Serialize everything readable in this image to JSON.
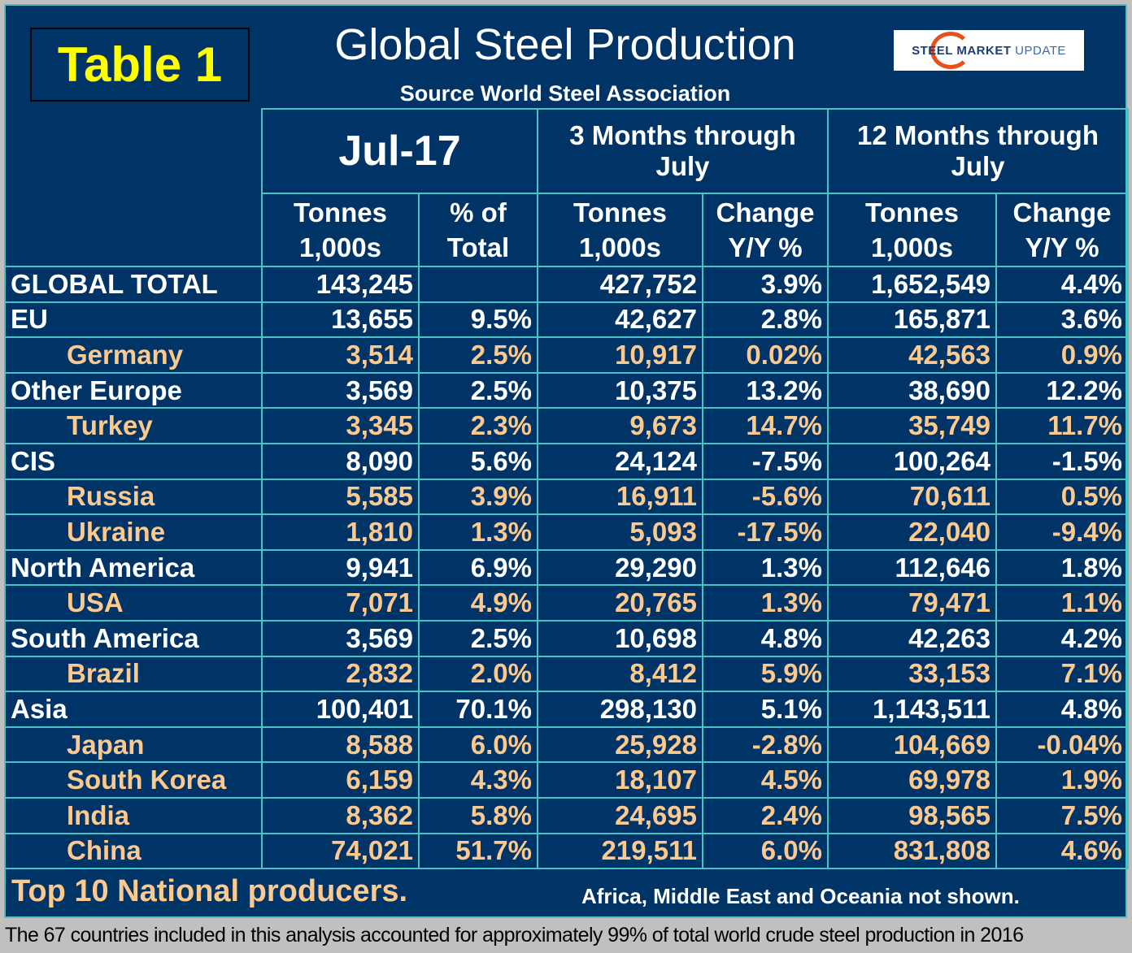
{
  "label": "Table 1",
  "title": "Global Steel Production",
  "subtitle": "Source World Steel Association",
  "logo": {
    "bold": "STEEL MARKET",
    "light": "UPDATE"
  },
  "headers": {
    "groups": [
      "Jul-17",
      "3 Months through July",
      "12 Months through July"
    ],
    "columns": [
      "Tonnes 1,000s",
      "% of Total",
      "Tonnes 1,000s",
      "Change Y/Y %",
      "Tonnes 1,000s",
      "Change Y/Y %"
    ]
  },
  "rows": [
    {
      "name": "GLOBAL TOTAL",
      "type": "region",
      "values": [
        "143,245",
        "",
        "427,752",
        "3.9%",
        "1,652,549",
        "4.4%"
      ]
    },
    {
      "name": "EU",
      "type": "region",
      "values": [
        "13,655",
        "9.5%",
        "42,627",
        "2.8%",
        "165,871",
        "3.6%"
      ]
    },
    {
      "name": "Germany",
      "type": "country",
      "values": [
        "3,514",
        "2.5%",
        "10,917",
        "0.02%",
        "42,563",
        "0.9%"
      ]
    },
    {
      "name": "Other Europe",
      "type": "region",
      "values": [
        "3,569",
        "2.5%",
        "10,375",
        "13.2%",
        "38,690",
        "12.2%"
      ]
    },
    {
      "name": "Turkey",
      "type": "country",
      "values": [
        "3,345",
        "2.3%",
        "9,673",
        "14.7%",
        "35,749",
        "11.7%"
      ]
    },
    {
      "name": "CIS",
      "type": "region",
      "values": [
        "8,090",
        "5.6%",
        "24,124",
        "-7.5%",
        "100,264",
        "-1.5%"
      ]
    },
    {
      "name": "Russia",
      "type": "country",
      "values": [
        "5,585",
        "3.9%",
        "16,911",
        "-5.6%",
        "70,611",
        "0.5%"
      ]
    },
    {
      "name": "Ukraine",
      "type": "country",
      "values": [
        "1,810",
        "1.3%",
        "5,093",
        "-17.5%",
        "22,040",
        "-9.4%"
      ]
    },
    {
      "name": "North America",
      "type": "region",
      "values": [
        "9,941",
        "6.9%",
        "29,290",
        "1.3%",
        "112,646",
        "1.8%"
      ]
    },
    {
      "name": "USA",
      "type": "country",
      "values": [
        "7,071",
        "4.9%",
        "20,765",
        "1.3%",
        "79,471",
        "1.1%"
      ]
    },
    {
      "name": "South America",
      "type": "region",
      "values": [
        "3,569",
        "2.5%",
        "10,698",
        "4.8%",
        "42,263",
        "4.2%"
      ]
    },
    {
      "name": "Brazil",
      "type": "country",
      "values": [
        "2,832",
        "2.0%",
        "8,412",
        "5.9%",
        "33,153",
        "7.1%"
      ]
    },
    {
      "name": "Asia",
      "type": "region",
      "values": [
        "100,401",
        "70.1%",
        "298,130",
        "5.1%",
        "1,143,511",
        "4.8%"
      ]
    },
    {
      "name": "Japan",
      "type": "country",
      "values": [
        "8,588",
        "6.0%",
        "25,928",
        "-2.8%",
        "104,669",
        "-0.04%"
      ]
    },
    {
      "name": "South Korea",
      "type": "country",
      "values": [
        "6,159",
        "4.3%",
        "18,107",
        "4.5%",
        "69,978",
        "1.9%"
      ]
    },
    {
      "name": "India",
      "type": "country",
      "values": [
        "8,362",
        "5.8%",
        "24,695",
        "2.4%",
        "98,565",
        "7.5%"
      ]
    },
    {
      "name": "China",
      "type": "country",
      "values": [
        "74,021",
        "51.7%",
        "219,511",
        "6.0%",
        "831,808",
        "4.6%"
      ]
    }
  ],
  "footer": {
    "left": "Top 10 National producers.",
    "right": "Africa, Middle East and Oceania not shown."
  },
  "note": "The 67 countries included in this analysis accounted for approximately 99% of total world crude steel production in 2016",
  "colors": {
    "background": "#003366",
    "grid": "#48c4c8",
    "region_text": "#ffffff",
    "country_text": "#fcc98f",
    "label_text": "#ffff00"
  }
}
